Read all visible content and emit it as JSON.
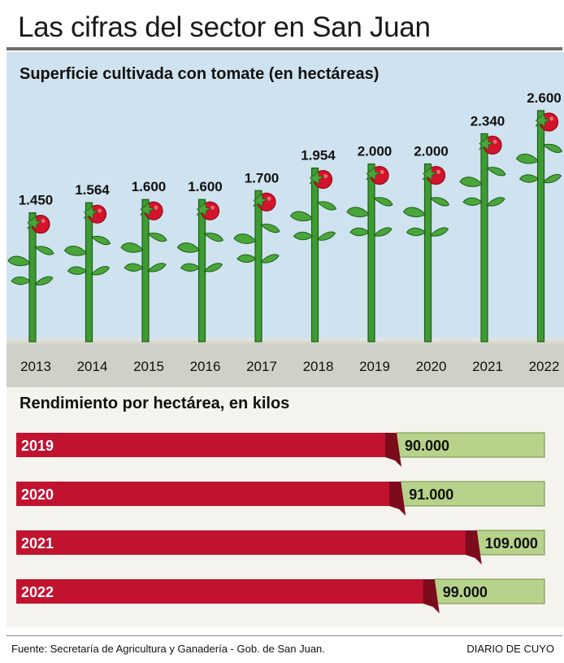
{
  "header": {
    "title": "Las cifras del sector en San Juan"
  },
  "colors": {
    "stem": "#3e9b32",
    "stem_dark": "#1d5e18",
    "leaf": "#4aa63a",
    "tomato": "#d4142b",
    "tomato_dark": "#8e0c19",
    "bar_red": "#c1122f",
    "bar_red_dark": "#7c0c1c",
    "bar_green": "#b7d38b",
    "bar_green_dark": "#6f8f3f"
  },
  "chart_data": [
    {
      "type": "bar",
      "style": "pictogram-tomato-plants",
      "title": "Superficie cultivada con tomate (en hectáreas)",
      "categories": [
        "2013",
        "2014",
        "2015",
        "2016",
        "2017",
        "2018",
        "2019",
        "2020",
        "2021",
        "2022"
      ],
      "values": [
        1450,
        1564,
        1600,
        1600,
        1700,
        1954,
        2000,
        2000,
        2340,
        2600
      ],
      "value_labels": [
        "1.450",
        "1.564",
        "1.600",
        "1.600",
        "1.700",
        "1.954",
        "2.000",
        "2.000",
        "2.340",
        "2.600"
      ],
      "ylim": [
        0,
        2600
      ]
    },
    {
      "type": "bar",
      "orientation": "horizontal",
      "title": "Rendimiento por hectárea, en kilos",
      "categories": [
        "2019",
        "2020",
        "2021",
        "2022"
      ],
      "values": [
        90000,
        91000,
        109000,
        99000
      ],
      "value_labels": [
        "90.000",
        "91.000",
        "109.000",
        "99.000"
      ]
    }
  ],
  "footer": {
    "source": "Fuente: Secretaría de Agricultura y Ganadería - Gob. de San Juan.",
    "credit": "DIARIO DE CUYO"
  }
}
